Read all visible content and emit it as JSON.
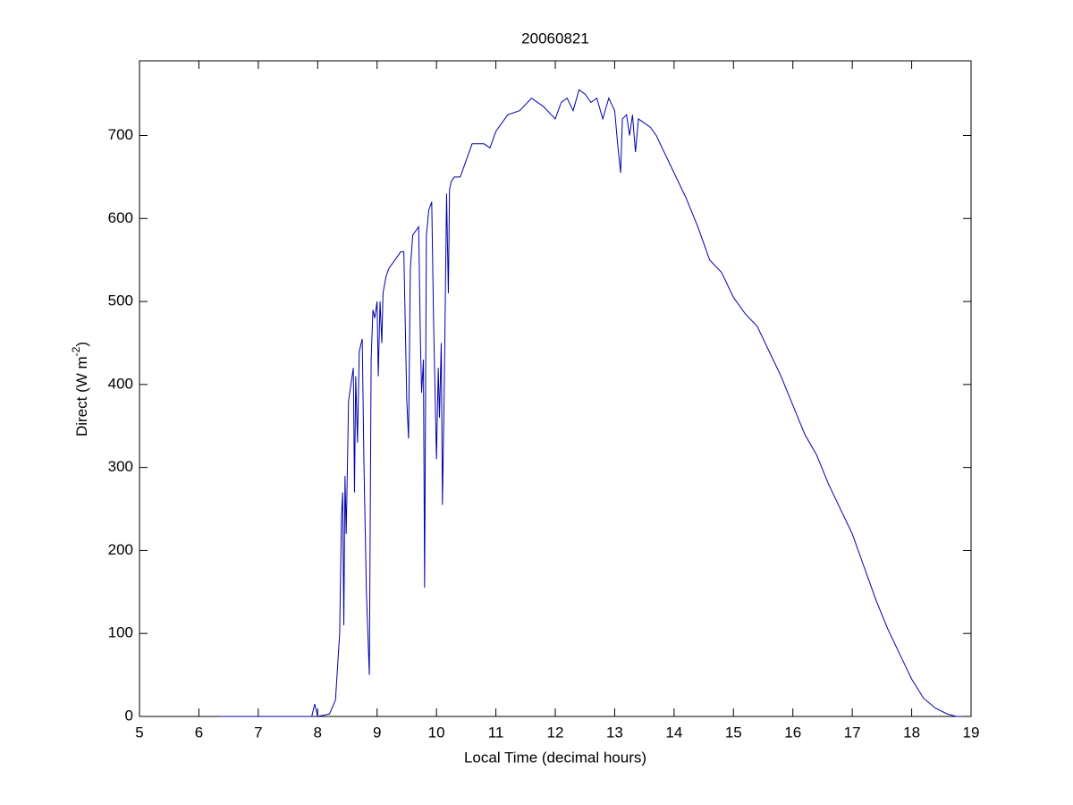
{
  "chart_data": {
    "type": "line",
    "title": "20060821",
    "xlabel": "Local Time (decimal hours)",
    "ylabel": [
      "Direct (W m",
      "-2",
      ")"
    ],
    "xlim": [
      5,
      19
    ],
    "xticks": [
      5,
      6,
      7,
      8,
      9,
      10,
      11,
      12,
      13,
      14,
      15,
      16,
      17,
      18,
      19
    ],
    "ylim": [
      0,
      790
    ],
    "yticks": [
      0,
      100,
      200,
      300,
      400,
      500,
      600,
      700
    ],
    "grid": false,
    "series": [
      {
        "color": "#0000aa",
        "x": [
          6.33,
          7.0,
          7.9,
          7.95,
          8.0,
          8.2,
          8.3,
          8.37,
          8.4,
          8.42,
          8.44,
          8.46,
          8.48,
          8.52,
          8.56,
          8.6,
          8.62,
          8.64,
          8.67,
          8.7,
          8.75,
          8.78,
          8.82,
          8.85,
          8.87,
          8.9,
          8.93,
          8.96,
          9.0,
          9.02,
          9.05,
          9.08,
          9.1,
          9.15,
          9.2,
          9.3,
          9.4,
          9.45,
          9.5,
          9.53,
          9.56,
          9.6,
          9.7,
          9.73,
          9.75,
          9.78,
          9.8,
          9.83,
          9.87,
          9.92,
          9.95,
          10.0,
          10.03,
          10.05,
          10.08,
          10.1,
          10.13,
          10.17,
          10.2,
          10.22,
          10.25,
          10.3,
          10.4,
          10.5,
          10.6,
          10.8,
          10.9,
          11.0,
          11.2,
          11.4,
          11.6,
          11.8,
          12.0,
          12.1,
          12.2,
          12.3,
          12.4,
          12.5,
          12.6,
          12.7,
          12.8,
          12.9,
          13.0,
          13.05,
          13.1,
          13.13,
          13.2,
          13.25,
          13.3,
          13.35,
          13.4,
          13.5,
          13.6,
          13.7,
          13.8,
          14.0,
          14.2,
          14.4,
          14.6,
          14.8,
          15.0,
          15.2,
          15.4,
          15.6,
          15.8,
          16.0,
          16.2,
          16.4,
          16.6,
          16.8,
          17.0,
          17.2,
          17.4,
          17.6,
          17.8,
          18.0,
          18.2,
          18.4,
          18.6,
          18.75,
          18.85
        ],
        "values": [
          0,
          0,
          0,
          15,
          0,
          3,
          20,
          100,
          240,
          270,
          110,
          290,
          220,
          380,
          400,
          420,
          270,
          410,
          330,
          440,
          455,
          300,
          150,
          90,
          50,
          430,
          490,
          480,
          500,
          410,
          500,
          450,
          510,
          530,
          540,
          550,
          560,
          560,
          380,
          335,
          540,
          580,
          590,
          450,
          390,
          430,
          155,
          580,
          610,
          620,
          480,
          310,
          420,
          360,
          450,
          255,
          390,
          630,
          510,
          635,
          645,
          650,
          650,
          670,
          690,
          690,
          685,
          705,
          725,
          730,
          745,
          735,
          720,
          740,
          745,
          730,
          755,
          750,
          740,
          745,
          720,
          745,
          730,
          690,
          655,
          720,
          725,
          700,
          725,
          680,
          720,
          715,
          710,
          700,
          685,
          655,
          625,
          590,
          550,
          535,
          505,
          485,
          470,
          440,
          410,
          375,
          340,
          315,
          280,
          250,
          220,
          180,
          140,
          105,
          75,
          45,
          22,
          10,
          3,
          0,
          0
        ]
      }
    ]
  }
}
